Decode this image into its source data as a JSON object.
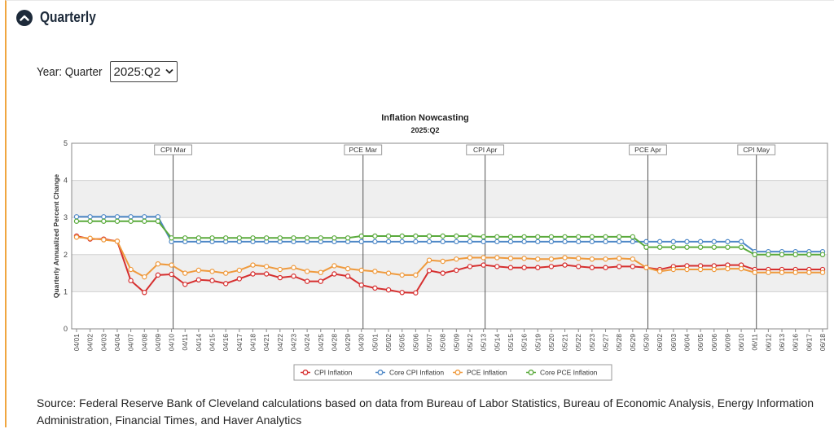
{
  "section": {
    "title": "Quarterly"
  },
  "year_selector": {
    "label": "Year: Quarter",
    "value": "2025:Q2"
  },
  "chart_data": {
    "type": "line",
    "title": "Inflation Nowcasting",
    "subtitle": "2025:Q2",
    "ylabel": "Quarterly Annualized Percent Change",
    "ylim": [
      0,
      5
    ],
    "yticks": [
      0,
      1,
      2,
      3,
      4,
      5
    ],
    "categories": [
      "04/01",
      "04/02",
      "04/03",
      "04/04",
      "04/07",
      "04/08",
      "04/09",
      "04/10",
      "04/11",
      "04/14",
      "04/15",
      "04/16",
      "04/17",
      "04/18",
      "04/21",
      "04/22",
      "04/23",
      "04/24",
      "04/25",
      "04/28",
      "04/29",
      "04/30",
      "05/01",
      "05/02",
      "05/05",
      "05/06",
      "05/07",
      "05/08",
      "05/09",
      "05/12",
      "05/13",
      "05/14",
      "05/15",
      "05/16",
      "05/19",
      "05/20",
      "05/21",
      "05/22",
      "05/23",
      "05/27",
      "05/28",
      "05/29",
      "05/30",
      "06/02",
      "06/03",
      "06/04",
      "06/05",
      "06/06",
      "06/09",
      "06/10",
      "06/11",
      "06/12",
      "06/13",
      "06/16",
      "06/17",
      "06/18"
    ],
    "release_markers": [
      {
        "label": "CPI Mar",
        "at": "04/10"
      },
      {
        "label": "PCE Mar",
        "at": "04/30"
      },
      {
        "label": "CPI Apr",
        "at": "05/13"
      },
      {
        "label": "PCE Apr",
        "at": "05/30"
      },
      {
        "label": "CPI May",
        "at": "06/11"
      }
    ],
    "grid": true,
    "legend_position": "bottom",
    "series": [
      {
        "name": "CPI Inflation",
        "color": "#d62f2f",
        "values": [
          2.5,
          2.42,
          2.42,
          2.36,
          1.3,
          0.98,
          1.45,
          1.47,
          1.2,
          1.32,
          1.3,
          1.22,
          1.35,
          1.48,
          1.48,
          1.38,
          1.42,
          1.28,
          1.28,
          1.48,
          1.42,
          1.18,
          1.1,
          1.05,
          0.98,
          0.97,
          1.57,
          1.5,
          1.58,
          1.68,
          1.72,
          1.68,
          1.65,
          1.65,
          1.65,
          1.68,
          1.72,
          1.68,
          1.65,
          1.65,
          1.68,
          1.68,
          1.65,
          1.6,
          1.68,
          1.7,
          1.7,
          1.7,
          1.72,
          1.72,
          1.6,
          1.6,
          1.6,
          1.6,
          1.6,
          1.6
        ]
      },
      {
        "name": "Core CPI Inflation",
        "color": "#4e88c7",
        "values": [
          3.02,
          3.02,
          3.02,
          3.02,
          3.02,
          3.02,
          3.02,
          2.35,
          2.35,
          2.35,
          2.35,
          2.35,
          2.35,
          2.35,
          2.35,
          2.35,
          2.35,
          2.35,
          2.35,
          2.35,
          2.35,
          2.35,
          2.35,
          2.35,
          2.35,
          2.35,
          2.35,
          2.35,
          2.35,
          2.35,
          2.35,
          2.35,
          2.35,
          2.35,
          2.35,
          2.35,
          2.35,
          2.35,
          2.35,
          2.35,
          2.35,
          2.35,
          2.35,
          2.35,
          2.35,
          2.35,
          2.35,
          2.35,
          2.35,
          2.35,
          2.08,
          2.08,
          2.08,
          2.08,
          2.08,
          2.08
        ]
      },
      {
        "name": "PCE Inflation",
        "color": "#ef9a3d",
        "values": [
          2.47,
          2.44,
          2.4,
          2.36,
          1.6,
          1.4,
          1.75,
          1.72,
          1.5,
          1.58,
          1.55,
          1.5,
          1.58,
          1.72,
          1.68,
          1.6,
          1.65,
          1.55,
          1.52,
          1.7,
          1.62,
          1.58,
          1.55,
          1.5,
          1.45,
          1.45,
          1.85,
          1.82,
          1.88,
          1.92,
          1.92,
          1.92,
          1.9,
          1.9,
          1.88,
          1.88,
          1.92,
          1.9,
          1.88,
          1.88,
          1.9,
          1.88,
          1.65,
          1.55,
          1.6,
          1.6,
          1.6,
          1.6,
          1.62,
          1.62,
          1.52,
          1.52,
          1.52,
          1.52,
          1.52,
          1.52
        ]
      },
      {
        "name": "Core PCE Inflation",
        "color": "#5aaa3c",
        "values": [
          2.9,
          2.9,
          2.9,
          2.9,
          2.9,
          2.9,
          2.9,
          2.45,
          2.45,
          2.45,
          2.45,
          2.45,
          2.45,
          2.45,
          2.45,
          2.45,
          2.45,
          2.45,
          2.45,
          2.45,
          2.45,
          2.5,
          2.5,
          2.5,
          2.5,
          2.5,
          2.5,
          2.5,
          2.5,
          2.5,
          2.48,
          2.48,
          2.48,
          2.48,
          2.48,
          2.48,
          2.48,
          2.48,
          2.48,
          2.48,
          2.48,
          2.48,
          2.2,
          2.2,
          2.2,
          2.2,
          2.2,
          2.2,
          2.2,
          2.2,
          2.0,
          2.0,
          2.0,
          2.0,
          2.0,
          2.0
        ]
      }
    ]
  },
  "source_note": "Source: Federal Reserve Bank of Cleveland calculations based on data from Bureau of Labor Statistics, Bureau of Economic Analysis, Energy Information Administration, Financial Times, and Haver Analytics"
}
